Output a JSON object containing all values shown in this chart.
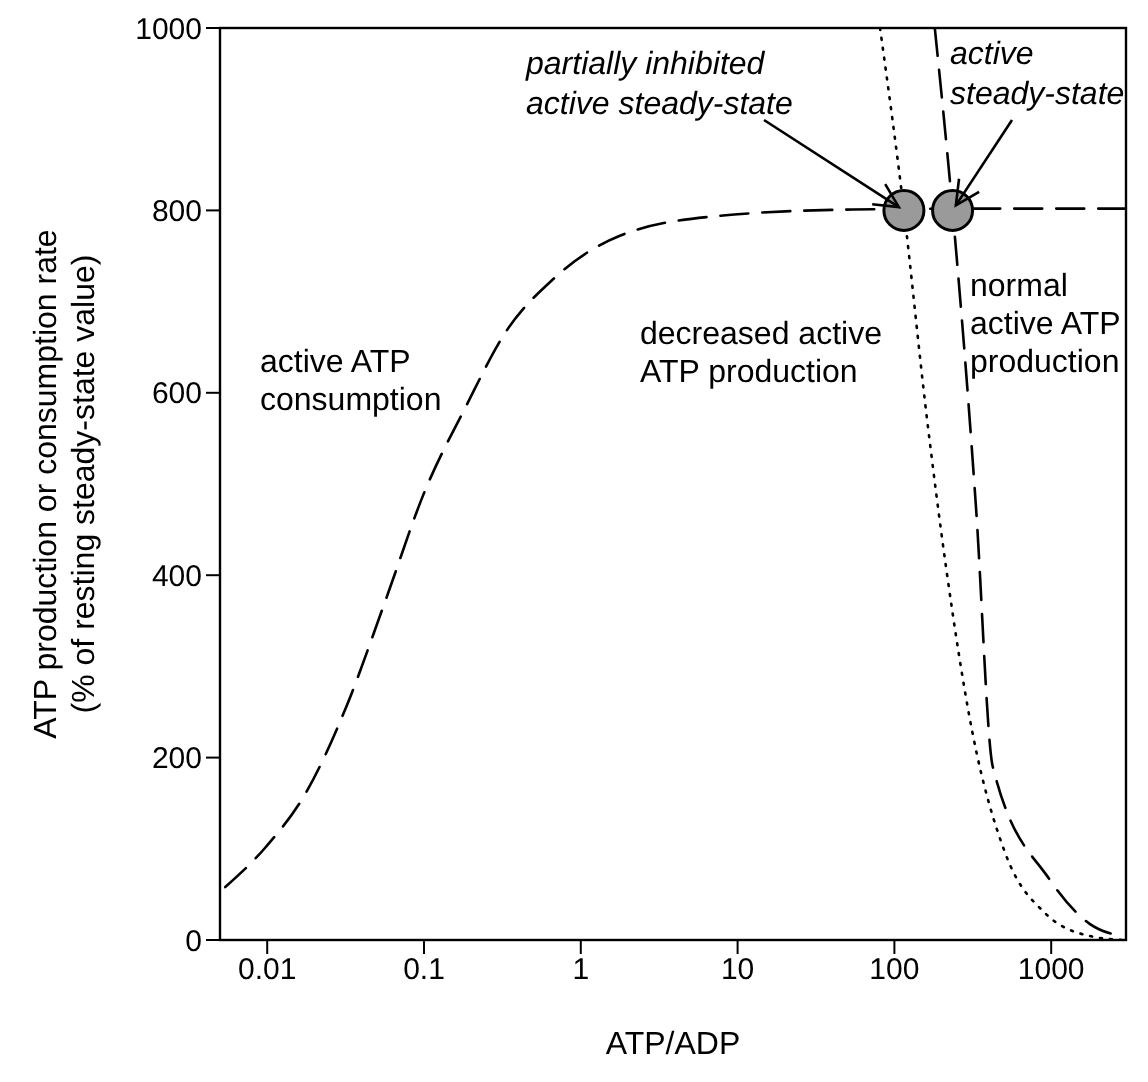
{
  "chart_data": {
    "type": "line",
    "xlabel": "ATP/ADP",
    "ylabel": "ATP production or consumption rate\n(% of resting steady-state value)",
    "log": "x",
    "xlim": [
      0.005,
      3000
    ],
    "xticks": [
      0.01,
      0.1,
      1,
      10,
      100,
      1000
    ],
    "ylim": [
      0,
      1000
    ],
    "yticks": [
      0,
      200,
      400,
      600,
      800,
      1000
    ],
    "marker": "none",
    "series": [
      {
        "name": "active ATP consumption",
        "color": "#000000",
        "line_style": "dashed",
        "x": [
          0.0054,
          0.0098,
          0.0176,
          0.032,
          0.057,
          0.1,
          0.185,
          0.33,
          0.66,
          1.76,
          7.6,
          54,
          300,
          3000
        ],
        "values": [
          58,
          102,
          161,
          256,
          373,
          490,
          585,
          666,
          724,
          772,
          794,
          801,
          802,
          802
        ]
      },
      {
        "name": "decreased active ATP production",
        "color": "#000000",
        "line_style": "dotted",
        "x": [
          81,
          115,
          160,
          213,
          315,
          510,
          920,
          1800,
          2850
        ],
        "values": [
          1000,
          800,
          577,
          410,
          227,
          95,
          29,
          4,
          0
        ]
      },
      {
        "name": "normal active ATP production",
        "color": "#000000",
        "line_style": "dashed",
        "x": [
          181,
          235,
          300,
          331,
          424,
          980,
          1750,
          2850
        ],
        "values": [
          1000,
          800,
          578,
          476,
          190,
          66,
          18,
          4
        ]
      },
      {
        "type": "scatter",
        "marker": "circle",
        "color": "#9a9a9a",
        "x": [
          115,
          235
        ],
        "values": [
          800,
          800
        ]
      }
    ],
    "annotations": [
      {
        "text": "partially inhibited active steady-state",
        "x": 115,
        "y": 800
      },
      {
        "text": "active steady-state",
        "x": 235,
        "y": 800
      }
    ]
  }
}
